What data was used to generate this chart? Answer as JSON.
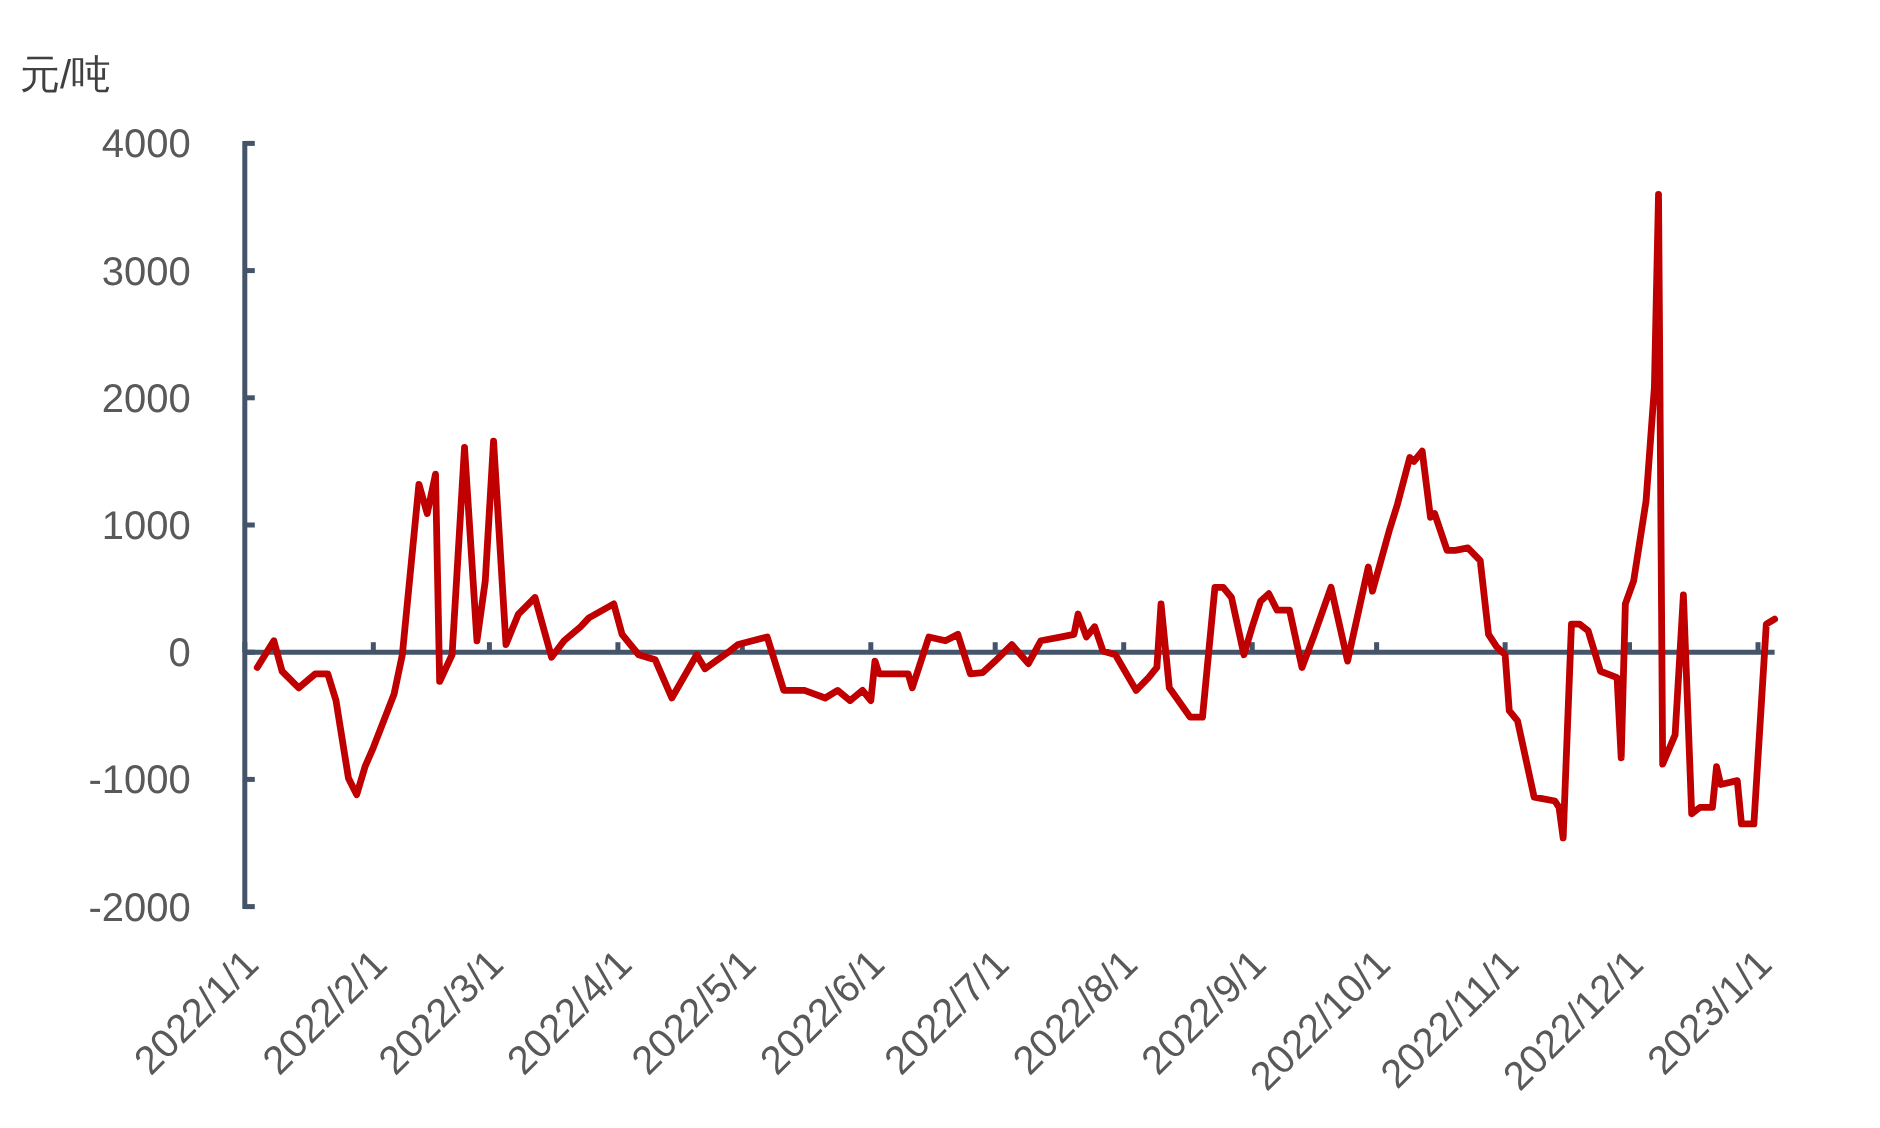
{
  "chart_data": {
    "type": "line",
    "ylabel": "元/吨",
    "x": [
      "2022-01-04",
      "2022-01-08",
      "2022-01-10",
      "2022-01-14",
      "2022-01-18",
      "2022-01-21",
      "2022-01-23",
      "2022-01-26",
      "2022-01-28",
      "2022-01-30",
      "2022-02-01",
      "2022-02-06",
      "2022-02-08",
      "2022-02-12",
      "2022-02-14",
      "2022-02-16",
      "2022-02-17",
      "2022-02-20",
      "2022-02-23",
      "2022-02-26",
      "2022-02-28",
      "2022-03-02",
      "2022-03-05",
      "2022-03-08",
      "2022-03-12",
      "2022-03-16",
      "2022-03-19",
      "2022-03-23",
      "2022-03-25",
      "2022-03-31",
      "2022-04-02",
      "2022-04-06",
      "2022-04-10",
      "2022-04-14",
      "2022-04-20",
      "2022-04-22",
      "2022-04-28",
      "2022-04-30",
      "2022-05-07",
      "2022-05-11",
      "2022-05-16",
      "2022-05-21",
      "2022-05-24",
      "2022-05-27",
      "2022-05-30",
      "2022-06-01",
      "2022-06-02",
      "2022-06-03",
      "2022-06-10",
      "2022-06-11",
      "2022-06-15",
      "2022-06-19",
      "2022-06-22",
      "2022-06-25",
      "2022-06-28",
      "2022-07-01",
      "2022-07-05",
      "2022-07-09",
      "2022-07-12",
      "2022-07-17",
      "2022-07-20",
      "2022-07-21",
      "2022-07-23",
      "2022-07-25",
      "2022-07-27",
      "2022-07-30",
      "2022-08-04",
      "2022-08-07",
      "2022-08-09",
      "2022-08-10",
      "2022-08-12",
      "2022-08-17",
      "2022-08-20",
      "2022-08-23",
      "2022-08-25",
      "2022-08-27",
      "2022-08-30",
      "2022-09-01",
      "2022-09-03",
      "2022-09-05",
      "2022-09-07",
      "2022-09-10",
      "2022-09-13",
      "2022-09-16",
      "2022-09-20",
      "2022-09-24",
      "2022-09-29",
      "2022-09-30",
      "2022-10-04",
      "2022-10-06",
      "2022-10-09",
      "2022-10-10",
      "2022-10-12",
      "2022-10-14",
      "2022-10-15",
      "2022-10-18",
      "2022-10-20",
      "2022-10-23",
      "2022-10-26",
      "2022-10-28",
      "2022-10-30",
      "2022-11-01",
      "2022-11-02",
      "2022-11-04",
      "2022-11-08",
      "2022-11-13",
      "2022-11-14",
      "2022-11-15",
      "2022-11-17",
      "2022-11-19",
      "2022-11-21",
      "2022-11-24",
      "2022-11-28",
      "2022-11-29",
      "2022-11-30",
      "2022-12-02",
      "2022-12-05",
      "2022-12-07",
      "2022-12-08",
      "2022-12-09",
      "2022-12-12",
      "2022-12-14",
      "2022-12-16",
      "2022-12-18",
      "2022-12-21",
      "2022-12-22",
      "2022-12-23",
      "2022-12-27",
      "2022-12-28",
      "2022-12-31",
      "2023-01-03",
      "2023-01-05"
    ],
    "series": [
      {
        "color": "#c00000",
        "values": [
          -120,
          90,
          -150,
          -280,
          -170,
          -170,
          -380,
          -990,
          -1120,
          -900,
          -750,
          -330,
          -20,
          1320,
          1090,
          1400,
          -230,
          -20,
          1610,
          90,
          560,
          1660,
          60,
          300,
          430,
          -40,
          90,
          200,
          270,
          380,
          140,
          -20,
          -60,
          -360,
          -20,
          -130,
          10,
          60,
          120,
          -300,
          -300,
          -360,
          -300,
          -380,
          -300,
          -380,
          -70,
          -170,
          -170,
          -280,
          120,
          90,
          140,
          -170,
          -160,
          -70,
          60,
          -90,
          90,
          120,
          140,
          300,
          120,
          200,
          10,
          -20,
          -300,
          -200,
          -120,
          380,
          -280,
          -510,
          -510,
          510,
          510,
          430,
          -20,
          200,
          400,
          460,
          330,
          330,
          -120,
          140,
          510,
          -70,
          670,
          480,
          950,
          1160,
          1530,
          1500,
          1580,
          1060,
          1090,
          800,
          800,
          820,
          720,
          140,
          40,
          -20,
          -460,
          -540,
          -1140,
          -1170,
          -1220,
          -1460,
          220,
          220,
          170,
          -150,
          -200,
          -830,
          380,
          560,
          1190,
          2080,
          3600,
          -880,
          -650,
          450,
          -1270,
          -1220,
          -1220,
          -900,
          -1040,
          -1010,
          -1350,
          -1350,
          220,
          260
        ]
      }
    ],
    "xlim": [
      "2022-01-01",
      "2023-01-05"
    ],
    "xticks": [
      {
        "value": "2022-01-01",
        "label": "2022/1/1"
      },
      {
        "value": "2022-02-01",
        "label": "2022/2/1"
      },
      {
        "value": "2022-03-01",
        "label": "2022/3/1"
      },
      {
        "value": "2022-04-01",
        "label": "2022/4/1"
      },
      {
        "value": "2022-05-01",
        "label": "2022/5/1"
      },
      {
        "value": "2022-06-01",
        "label": "2022/6/1"
      },
      {
        "value": "2022-07-01",
        "label": "2022/7/1"
      },
      {
        "value": "2022-08-01",
        "label": "2022/8/1"
      },
      {
        "value": "2022-09-01",
        "label": "2022/9/1"
      },
      {
        "value": "2022-10-01",
        "label": "2022/10/1"
      },
      {
        "value": "2022-11-01",
        "label": "2022/11/1"
      },
      {
        "value": "2022-12-01",
        "label": "2022/12/1"
      },
      {
        "value": "2023-01-01",
        "label": "2023/1/1"
      }
    ],
    "ylim": [
      -2000,
      4000
    ],
    "yticks": [
      -2000,
      -1000,
      0,
      1000,
      2000,
      3000,
      4000
    ]
  }
}
